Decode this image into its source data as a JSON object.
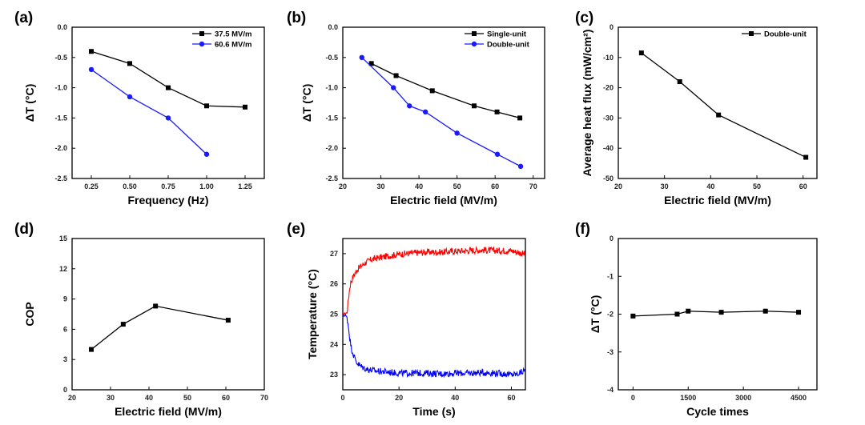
{
  "chart_data": [
    {
      "id": "a",
      "panel_label": "(a)",
      "type": "line",
      "xlabel": "Frequency (Hz)",
      "ylabel": "ΔT (°C)",
      "xlim": [
        0.125,
        1.375
      ],
      "ylim": [
        -2.5,
        0.0
      ],
      "xticks": [
        0.25,
        0.5,
        0.75,
        1.0,
        1.25
      ],
      "xtick_labels": [
        "0.25",
        "0.50",
        "0.75",
        "1.00",
        "1.25"
      ],
      "yticks": [
        0.0,
        -0.5,
        -1.0,
        -1.5,
        -2.0,
        -2.5
      ],
      "ytick_labels": [
        "0.0",
        "-0.5",
        "-1.0",
        "-1.5",
        "-2.0",
        "-2.5"
      ],
      "legend_position": "top-right",
      "series": [
        {
          "name": "37.5 MV/m",
          "color": "#000000",
          "marker": "square",
          "x": [
            0.25,
            0.5,
            0.75,
            1.0,
            1.25
          ],
          "y": [
            -0.4,
            -0.6,
            -1.0,
            -1.3,
            -1.32
          ]
        },
        {
          "name": "60.6 MV/m",
          "color": "#1a1aff",
          "marker": "circle",
          "x": [
            0.25,
            0.5,
            0.75,
            1.0
          ],
          "y": [
            -0.7,
            -1.15,
            -1.5,
            -2.1
          ]
        }
      ]
    },
    {
      "id": "b",
      "panel_label": "(b)",
      "type": "line",
      "xlabel": "Electric field (MV/m)",
      "ylabel": "ΔT (°C)",
      "xlim": [
        20,
        73
      ],
      "ylim": [
        -2.5,
        0.0
      ],
      "xticks": [
        20,
        30,
        40,
        50,
        60,
        70
      ],
      "xtick_labels": [
        "20",
        "30",
        "40",
        "50",
        "60",
        "70"
      ],
      "yticks": [
        0.0,
        -0.5,
        -1.0,
        -1.5,
        -2.0,
        -2.5
      ],
      "ytick_labels": [
        "0.0",
        "-0.5",
        "-1.0",
        "-1.5",
        "-2.0",
        "-2.5"
      ],
      "legend_position": "top-right",
      "series": [
        {
          "name": "Single-unit",
          "color": "#000000",
          "marker": "square",
          "x": [
            27.5,
            34,
            43.5,
            54.5,
            60.5,
            66.5
          ],
          "y": [
            -0.6,
            -0.8,
            -1.05,
            -1.3,
            -1.4,
            -1.5
          ]
        },
        {
          "name": "Double-unit",
          "color": "#1a1aff",
          "marker": "circle",
          "x": [
            25,
            33.3,
            37.5,
            41.7,
            50,
            60.6,
            66.7
          ],
          "y": [
            -0.5,
            -1.0,
            -1.3,
            -1.4,
            -1.75,
            -2.1,
            -2.3
          ]
        }
      ]
    },
    {
      "id": "c",
      "panel_label": "(c)",
      "type": "line",
      "xlabel": "Electric field (MV/m)",
      "ylabel": "Average heat flux (mW/cm²)",
      "xlim": [
        20,
        63
      ],
      "ylim": [
        -50,
        0
      ],
      "xticks": [
        20,
        30,
        40,
        50,
        60
      ],
      "xtick_labels": [
        "20",
        "30",
        "40",
        "50",
        "60"
      ],
      "yticks": [
        0,
        -10,
        -20,
        -30,
        -40,
        -50
      ],
      "ytick_labels": [
        "0",
        "-10",
        "-20",
        "-30",
        "-40",
        "-50"
      ],
      "legend_position": "top-right",
      "series": [
        {
          "name": "Double-unit",
          "color": "#000000",
          "marker": "square",
          "x": [
            25,
            33.3,
            41.7,
            60.6
          ],
          "y": [
            -8.5,
            -18,
            -29,
            -43
          ]
        }
      ]
    },
    {
      "id": "d",
      "panel_label": "(d)",
      "type": "line",
      "xlabel": "Electric field (MV/m)",
      "ylabel": "COP",
      "xlim": [
        20,
        70
      ],
      "ylim": [
        0,
        15
      ],
      "xticks": [
        20,
        30,
        40,
        50,
        60,
        70
      ],
      "xtick_labels": [
        "20",
        "30",
        "40",
        "50",
        "60",
        "70"
      ],
      "yticks": [
        0,
        3,
        6,
        9,
        12,
        15
      ],
      "ytick_labels": [
        "0",
        "3",
        "6",
        "9",
        "12",
        "15"
      ],
      "series": [
        {
          "color": "#000000",
          "marker": "square",
          "x": [
            25,
            33.3,
            41.7,
            60.6
          ],
          "y": [
            4.0,
            6.5,
            8.3,
            6.9
          ]
        }
      ]
    },
    {
      "id": "e",
      "panel_label": "(e)",
      "type": "line",
      "xlabel": "Time (s)",
      "ylabel": "Temperature (°C)",
      "xlim": [
        0,
        65
      ],
      "ylim": [
        22.5,
        27.5
      ],
      "xticks": [
        0,
        20,
        40,
        60
      ],
      "xtick_labels": [
        "0",
        "20",
        "40",
        "60"
      ],
      "yticks": [
        23,
        24,
        25,
        26,
        27
      ],
      "ytick_labels": [
        "23",
        "24",
        "25",
        "26",
        "27"
      ],
      "series": [
        {
          "color": "#ff0000",
          "x": [
            0,
            1,
            1.5,
            2,
            2.5,
            3,
            4,
            5,
            6,
            8,
            10,
            12,
            15,
            20,
            25,
            30,
            35,
            40,
            45,
            50,
            55,
            60,
            62,
            64,
            65
          ],
          "y": [
            25.0,
            25.02,
            25.05,
            25.5,
            25.9,
            26.1,
            26.3,
            26.45,
            26.55,
            26.7,
            26.8,
            26.85,
            26.9,
            26.98,
            27.02,
            27.05,
            27.05,
            27.08,
            27.1,
            27.12,
            27.1,
            27.1,
            27.05,
            27.0,
            26.98
          ]
        },
        {
          "color": "#0000ff",
          "x": [
            0,
            1,
            1.5,
            2,
            2.5,
            3,
            4,
            5,
            6,
            8,
            10,
            12,
            15,
            20,
            25,
            30,
            35,
            40,
            45,
            50,
            55,
            60,
            62,
            64,
            65
          ],
          "y": [
            24.95,
            24.95,
            24.9,
            24.6,
            24.2,
            23.9,
            23.6,
            23.4,
            23.3,
            23.2,
            23.15,
            23.12,
            23.1,
            23.05,
            23.05,
            23.05,
            23.03,
            23.05,
            23.05,
            23.07,
            23.05,
            23.0,
            23.02,
            23.1,
            23.15
          ]
        }
      ]
    },
    {
      "id": "f",
      "panel_label": "(f)",
      "type": "line",
      "xlabel": "Cycle times",
      "ylabel": "ΔT (°C)",
      "xlim": [
        -400,
        5000
      ],
      "ylim": [
        -4,
        0
      ],
      "xticks": [
        0,
        1500,
        3000,
        4500
      ],
      "xtick_labels": [
        "0",
        "1500",
        "3000",
        "4500"
      ],
      "yticks": [
        0,
        -1,
        -2,
        -3,
        -4
      ],
      "ytick_labels": [
        "0",
        "-1",
        "-2",
        "-3",
        "-4"
      ],
      "series": [
        {
          "color": "#000000",
          "marker": "square",
          "x": [
            0,
            1200,
            1500,
            2400,
            3600,
            4500
          ],
          "y": [
            -2.05,
            -2.0,
            -1.92,
            -1.95,
            -1.92,
            -1.95
          ]
        }
      ]
    }
  ]
}
